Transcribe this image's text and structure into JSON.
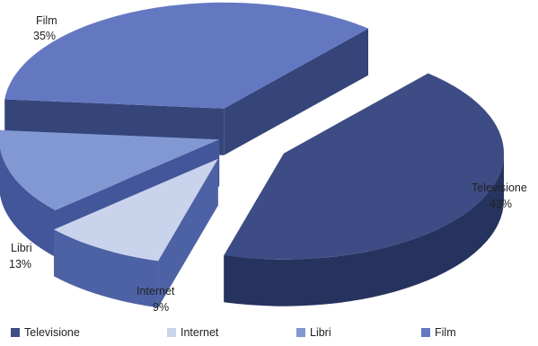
{
  "chart_data": {
    "type": "pie",
    "variant": "3d-exploded",
    "slices": [
      {
        "label": "Televisione",
        "value": 43,
        "display": "43%",
        "color": "#3d4c84",
        "side": "#27335f"
      },
      {
        "label": "Internet",
        "value": 9,
        "display": "9%",
        "color": "#c9d3ec",
        "side": "#4d62a4"
      },
      {
        "label": "Libri",
        "value": 13,
        "display": "13%",
        "color": "#8198d3",
        "side": "#43569a"
      },
      {
        "label": "Film",
        "value": 35,
        "display": "35%",
        "color": "#6478c2",
        "side": "#354579"
      }
    ],
    "legend": {
      "position": "bottom",
      "items": [
        {
          "label": "Televisione",
          "color": "#3d4c84"
        },
        {
          "label": "Internet",
          "color": "#c9d3ec"
        },
        {
          "label": "Libri",
          "color": "#8198d3"
        },
        {
          "label": "Film",
          "color": "#6478c2"
        }
      ]
    }
  }
}
